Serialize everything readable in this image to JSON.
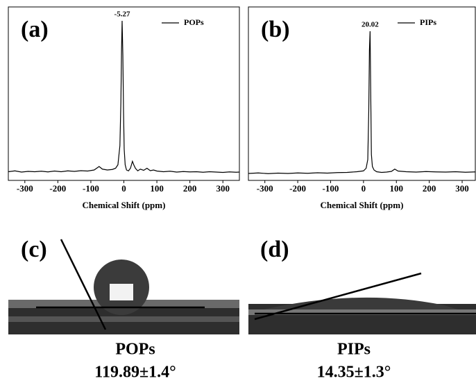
{
  "chart_data": [
    {
      "type": "line",
      "panel_label": "(a)",
      "x_label": "Chemical Shift (ppm)",
      "xlim": [
        -350,
        350
      ],
      "xticks": [
        -300,
        -200,
        -100,
        0,
        100,
        200,
        300
      ],
      "ylim": [
        0,
        100
      ],
      "annotation": {
        "text": "-5.27",
        "x": -5.27
      },
      "x": [
        -350,
        -330,
        -310,
        -290,
        -270,
        -250,
        -230,
        -210,
        -190,
        -170,
        -150,
        -130,
        -110,
        -90,
        -75,
        -65,
        -50,
        -35,
        -25,
        -18,
        -12,
        -9,
        -7,
        -5.27,
        -3,
        -1,
        1,
        4,
        8,
        14,
        20,
        26,
        30,
        35,
        42,
        50,
        60,
        70,
        80,
        90,
        100,
        120,
        140,
        160,
        180,
        200,
        220,
        240,
        260,
        280,
        300,
        320,
        340,
        350
      ],
      "series": [
        {
          "name": "POPs",
          "color": "#000000",
          "values": [
            5,
            5.5,
            4.8,
            5.2,
            5,
            5.3,
            4.9,
            5.4,
            5,
            5.5,
            5.2,
            5.6,
            5.4,
            6,
            8,
            6.5,
            6,
            6.3,
            7,
            9,
            20,
            45,
            75,
            92,
            72,
            40,
            18,
            9,
            6,
            5.5,
            7,
            11,
            9,
            7,
            5.5,
            6.5,
            5.8,
            7,
            5.6,
            6,
            5.4,
            5,
            5.3,
            4.8,
            5.1,
            4.9,
            5,
            4.7,
            5,
            4.8,
            4.6,
            4.9,
            4.7,
            4.8
          ]
        }
      ]
    },
    {
      "type": "line",
      "panel_label": "(b)",
      "x_label": "Chemical Shift (ppm)",
      "xlim": [
        -350,
        340
      ],
      "xticks": [
        -300,
        -200,
        -100,
        0,
        100,
        200,
        300
      ],
      "ylim": [
        0,
        100
      ],
      "annotation": {
        "text": "20.02",
        "x": 20.02
      },
      "x": [
        -350,
        -320,
        -290,
        -260,
        -230,
        -200,
        -170,
        -140,
        -110,
        -80,
        -50,
        -20,
        0,
        8,
        13,
        16,
        18,
        20.02,
        22,
        24,
        27,
        32,
        40,
        55,
        70,
        85,
        95,
        105,
        130,
        160,
        190,
        220,
        250,
        280,
        310,
        340
      ],
      "series": [
        {
          "name": "PIPs",
          "color": "#000000",
          "values": [
            4,
            4.3,
            3.9,
            4.2,
            4,
            4.3,
            4.1,
            4.4,
            4.2,
            4.5,
            4.6,
            5,
            5.5,
            7,
            12,
            40,
            75,
            86,
            50,
            15,
            8,
            6,
            5,
            4.6,
            4.8,
            5.2,
            6.5,
            5.4,
            5,
            4.8,
            5.1,
            4.9,
            4.8,
            5,
            4.7,
            4.9
          ]
        }
      ]
    }
  ],
  "photos": [
    {
      "label": "(c)",
      "name": "POPs",
      "angle": "119.89±1.4°"
    },
    {
      "label": "(d)",
      "name": "PIPs",
      "angle": "14.35±1.3°"
    }
  ]
}
